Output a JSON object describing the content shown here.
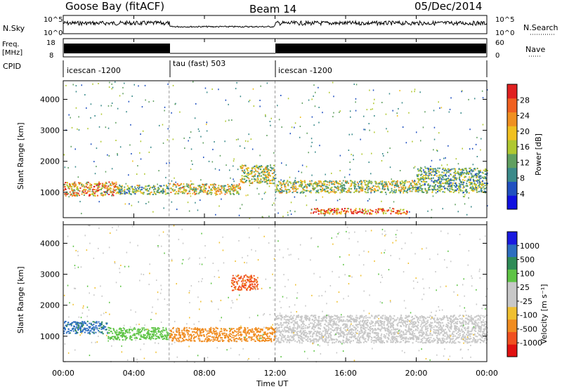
{
  "header": {
    "station": "Goose Bay (fitACF)",
    "beam": "Beam 14",
    "date": "05/Dec/2014"
  },
  "panels": {
    "nsky": {
      "label": "N.Sky",
      "ticks_left": [
        "10^5",
        "10^0"
      ],
      "ticks_right": [
        "10^5",
        "10^0"
      ],
      "right_label": "N.Search"
    },
    "freq": {
      "label_line1": "Freq.",
      "label_line2": "[MHz]",
      "ticks_left": [
        "18",
        "8"
      ],
      "ticks_right": [
        "60",
        "0"
      ],
      "right_label": "Nave"
    },
    "cpid": {
      "label": "CPID",
      "segments": [
        {
          "name": "icescan -1200",
          "start_hour": 0,
          "end_hour": 6
        },
        {
          "name": "tau (fast) 503",
          "start_hour": 6,
          "end_hour": 12
        },
        {
          "name": "icescan -1200",
          "start_hour": 12,
          "end_hour": 24
        }
      ]
    }
  },
  "axes": {
    "xlabel": "Time UT",
    "xticks": [
      "00:00",
      "04:00",
      "08:00",
      "12:00",
      "16:00",
      "20:00",
      "00:00"
    ],
    "ylabel": "Slant Range [km]",
    "yticks": [
      "1000",
      "2000",
      "3000",
      "4000"
    ],
    "ylim": [
      180,
      4600
    ]
  },
  "colorbars": {
    "power": {
      "label": "Power [dB]",
      "ticks": [
        "4",
        "8",
        "12",
        "16",
        "20",
        "24",
        "28"
      ],
      "colors": [
        "#1010e0",
        "#2050c0",
        "#3a8a8a",
        "#60a060",
        "#b0c830",
        "#f0c020",
        "#f09020",
        "#f06020",
        "#e02020"
      ]
    },
    "velocity": {
      "label": "Velocity [m s⁻¹]",
      "ticks": [
        "1000",
        "500",
        "100",
        "25",
        "-25",
        "-100",
        "-500",
        "-1000"
      ],
      "colors": [
        "#1a1ae0",
        "#2d6ec0",
        "#2e8b57",
        "#5ec445",
        "#c8c8c8",
        "#c8c8c8",
        "#f0c030",
        "#f08c20",
        "#f05020",
        "#e01010"
      ]
    }
  },
  "chart_data": {
    "type": "heatmap",
    "title": "Goose Bay (fitACF) Beam 14 05/Dec/2014",
    "xlabel": "Time UT",
    "ylabel": "Slant Range [km]",
    "x_range_hours": [
      0,
      24
    ],
    "y_range_km": [
      180,
      4600
    ],
    "series": [
      {
        "name": "Power [dB]",
        "regions": [
          {
            "t0": 0.0,
            "t1": 3.0,
            "r0": 900,
            "r1": 1350,
            "value": 22
          },
          {
            "t0": 3.0,
            "t1": 6.0,
            "r0": 950,
            "r1": 1250,
            "value": 14
          },
          {
            "t0": 6.0,
            "t1": 10.0,
            "r0": 950,
            "r1": 1300,
            "value": 18
          },
          {
            "t0": 10.0,
            "t1": 12.0,
            "r0": 1300,
            "r1": 1900,
            "value": 16
          },
          {
            "t0": 12.0,
            "t1": 20.0,
            "r0": 1000,
            "r1": 1400,
            "value": 16
          },
          {
            "t0": 14.0,
            "t1": 19.5,
            "r0": 320,
            "r1": 500,
            "value": 26
          },
          {
            "t0": 20.0,
            "t1": 24.0,
            "r0": 1000,
            "r1": 1800,
            "value": 12
          }
        ]
      },
      {
        "name": "Velocity [m s⁻¹]",
        "regions": [
          {
            "t0": 0.0,
            "t1": 2.5,
            "r0": 1100,
            "r1": 1500,
            "value": 600
          },
          {
            "t0": 2.5,
            "t1": 6.0,
            "r0": 900,
            "r1": 1300,
            "value": 50
          },
          {
            "t0": 6.0,
            "t1": 12.0,
            "r0": 850,
            "r1": 1300,
            "value": -150
          },
          {
            "t0": 9.5,
            "t1": 11.0,
            "r0": 2500,
            "r1": 3000,
            "value": -600
          },
          {
            "t0": 12.0,
            "t1": 24.0,
            "r0": 800,
            "r1": 1700,
            "value": 0
          }
        ]
      }
    ]
  }
}
